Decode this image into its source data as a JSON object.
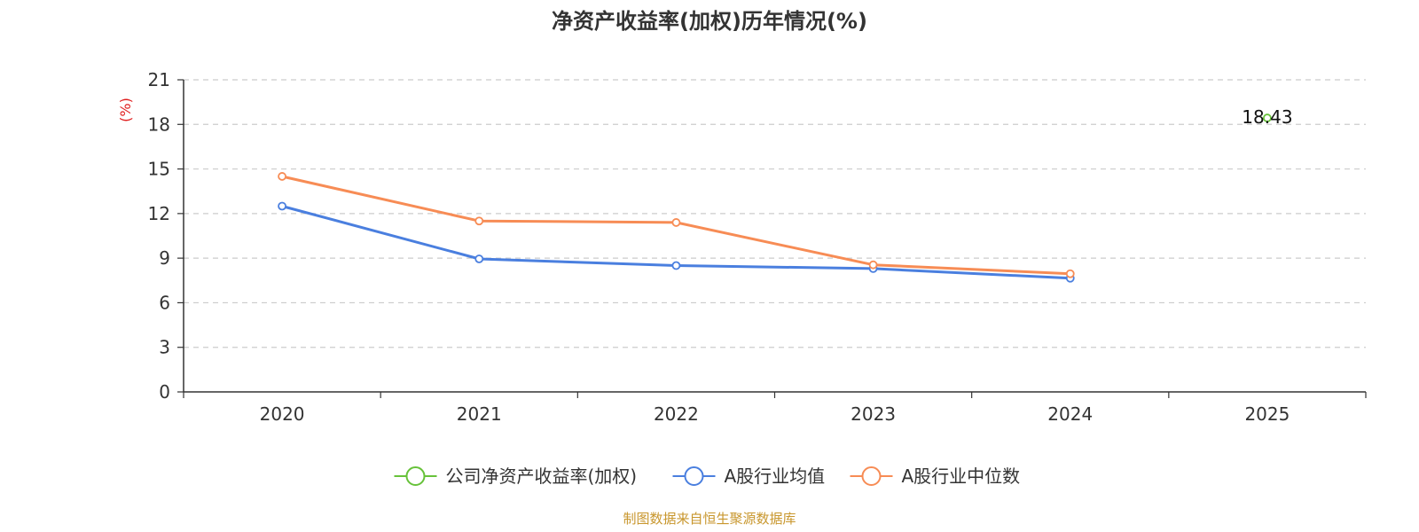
{
  "chart_data": {
    "type": "line",
    "title": "净资产收益率(加权)历年情况(%)",
    "ylabel": "(%)",
    "xlabel": "",
    "categories": [
      "2020",
      "2021",
      "2022",
      "2023",
      "2024",
      "2025"
    ],
    "ylim": [
      0,
      21
    ],
    "yticks": [
      0,
      3,
      6,
      9,
      12,
      15,
      18,
      21
    ],
    "grid": true,
    "legend_position": "bottom-center",
    "series": [
      {
        "name": "公司净资产收益率(加权)",
        "color": "#67c23a",
        "values": [
          null,
          null,
          null,
          null,
          null,
          18.43
        ],
        "data_labels": [
          null,
          null,
          null,
          null,
          null,
          "18.43"
        ]
      },
      {
        "name": "A股行业均值",
        "color": "#4a7fdf",
        "values": [
          12.5,
          8.95,
          8.5,
          8.3,
          7.65,
          null
        ]
      },
      {
        "name": "A股行业中位数",
        "color": "#f78c55",
        "values": [
          14.5,
          11.5,
          11.4,
          8.55,
          7.95,
          null
        ]
      }
    ],
    "unit_color": "#e02020",
    "source": "制图数据来自恒生聚源数据库",
    "source_color": "#c8962c"
  }
}
